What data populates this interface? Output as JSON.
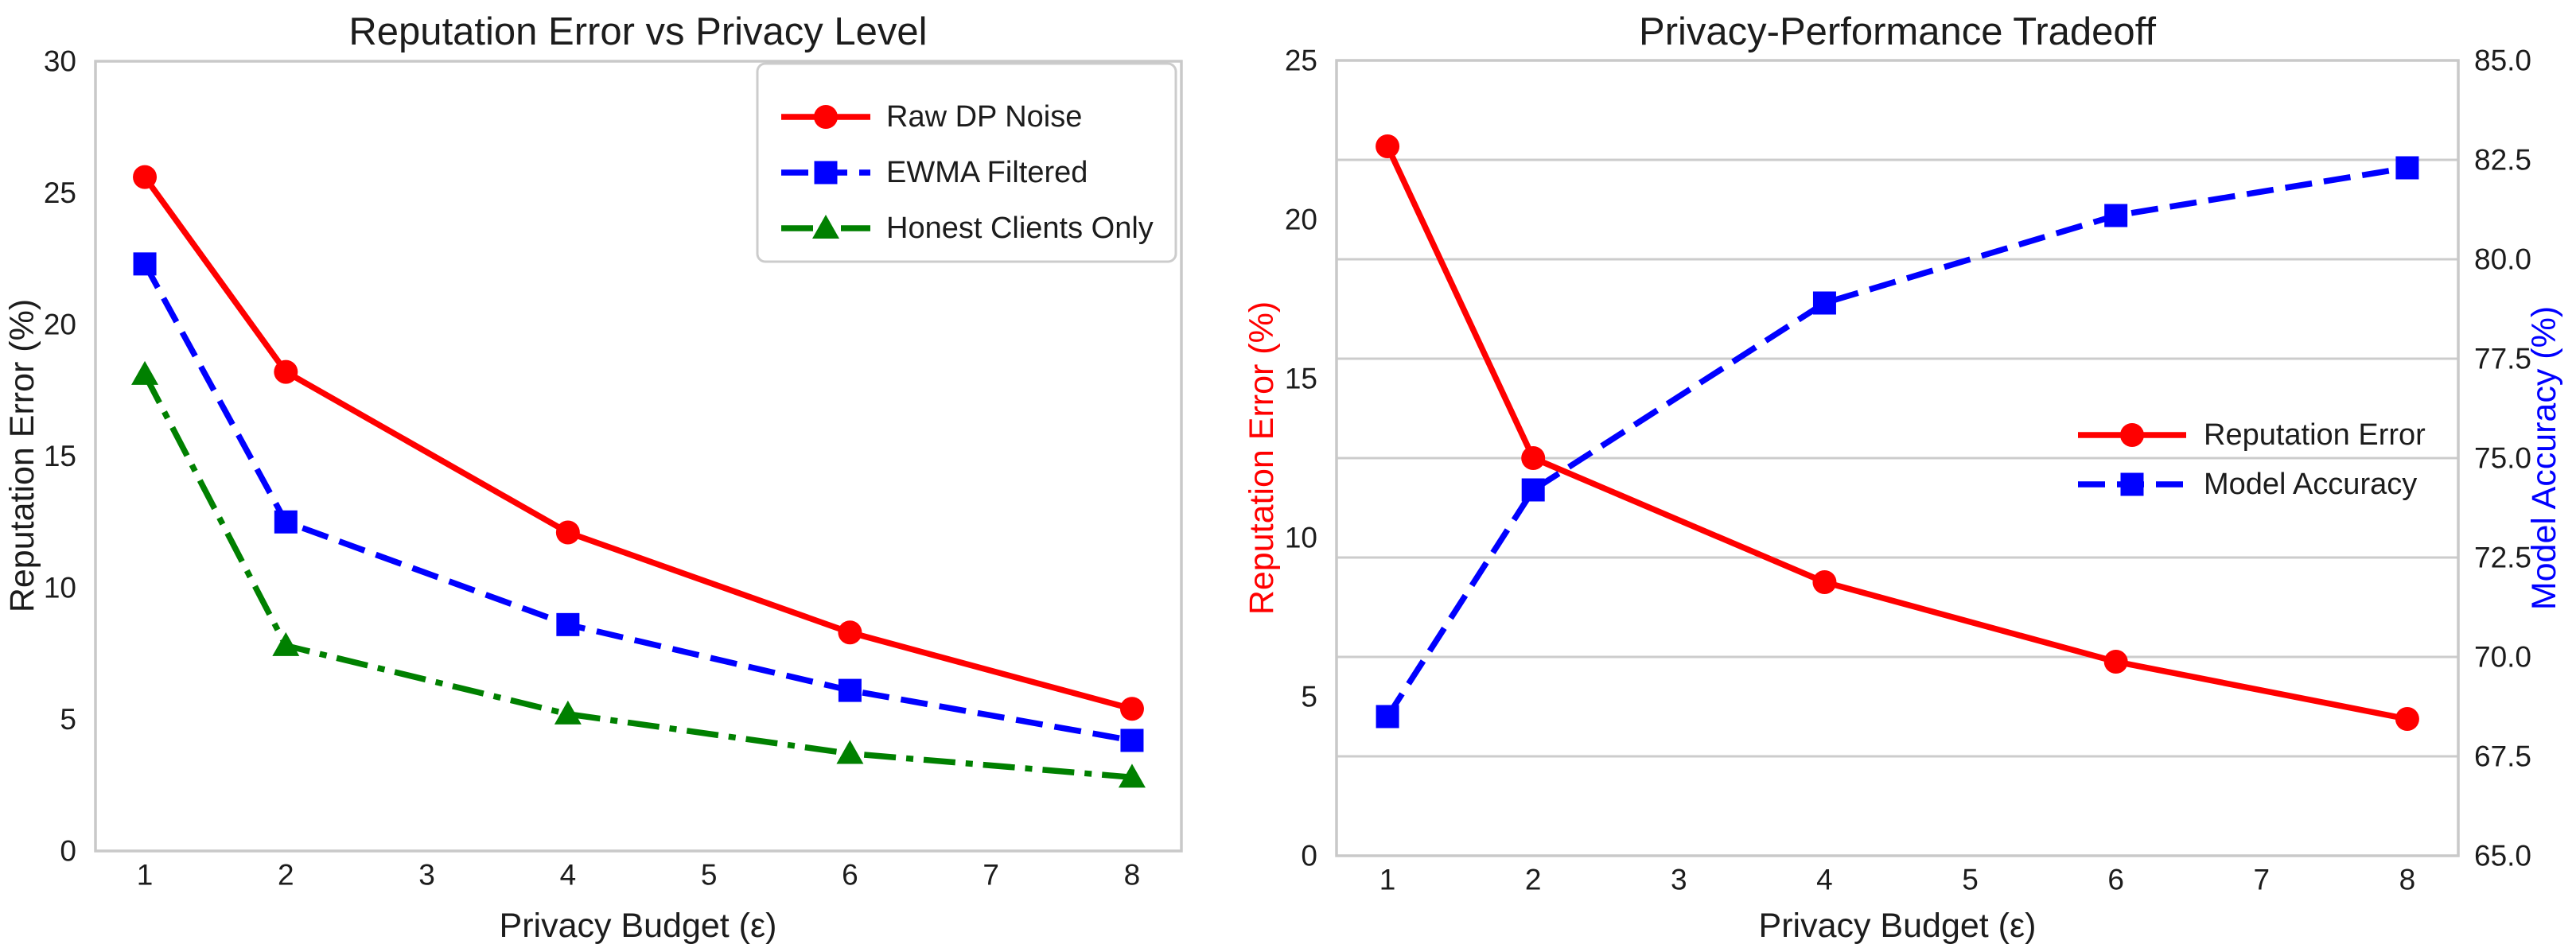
{
  "figure": {
    "background": "#ffffff",
    "text_color": "#1c1c1c",
    "axis_color": "#c9c9c9",
    "grid_color": "#cccccc"
  },
  "chart_data": [
    {
      "id": "reputation-error-vs-privacy-level",
      "type": "line",
      "title": "Reputation Error vs Privacy Level",
      "xlabel": "Privacy Budget (ε)",
      "ylabel": "Reputation Error (%)",
      "x": [
        1,
        2,
        4,
        6,
        8
      ],
      "xlim": [
        0.65,
        8.35
      ],
      "ylim": [
        0,
        30
      ],
      "xticks": {
        "values": [
          1,
          2,
          3,
          4,
          5,
          6,
          7,
          8
        ],
        "labels": [
          "1",
          "2",
          "3",
          "4",
          "5",
          "6",
          "7",
          "8"
        ]
      },
      "yticks": {
        "values": [
          0,
          5,
          10,
          15,
          20,
          25,
          30
        ],
        "labels": [
          "0",
          "5",
          "10",
          "15",
          "20",
          "25",
          "30"
        ]
      },
      "grid": "off",
      "legend": {
        "frame": true,
        "location": "upper-right"
      },
      "series": [
        {
          "name": "Raw DP Noise",
          "color": "#ff0000",
          "linestyle": "solid",
          "marker": "circle",
          "values": [
            25.6,
            18.2,
            12.1,
            8.3,
            5.4
          ]
        },
        {
          "name": "EWMA Filtered",
          "color": "#0000ff",
          "linestyle": "dashed",
          "marker": "square",
          "values": [
            22.3,
            12.5,
            8.6,
            6.1,
            4.2
          ]
        },
        {
          "name": "Honest Clients Only",
          "color": "#008000",
          "linestyle": "dashdot",
          "marker": "triangle",
          "values": [
            18.1,
            7.8,
            5.2,
            3.7,
            2.8
          ]
        }
      ]
    },
    {
      "id": "privacy-performance-tradeoff",
      "type": "line-dual-axis",
      "title": "Privacy-Performance Tradeoff",
      "xlabel": "Privacy Budget (ε)",
      "ylabel_left": "Reputation Error (%)",
      "ylabel_left_color": "#ff0000",
      "ylabel_right": "Model Accuracy (%)",
      "ylabel_right_color": "#0000ff",
      "x": [
        1,
        2,
        4,
        6,
        8
      ],
      "xlim": [
        0.65,
        8.35
      ],
      "ylim_left": [
        0,
        25
      ],
      "ylim_right": [
        65,
        85
      ],
      "xticks": {
        "values": [
          1,
          2,
          3,
          4,
          5,
          6,
          7,
          8
        ],
        "labels": [
          "1",
          "2",
          "3",
          "4",
          "5",
          "6",
          "7",
          "8"
        ]
      },
      "yticks_left": {
        "values": [
          0,
          5,
          10,
          15,
          20,
          25
        ],
        "labels": [
          "0",
          "5",
          "10",
          "15",
          "20",
          "25"
        ]
      },
      "yticks_right": {
        "values": [
          65,
          67.5,
          70,
          72.5,
          75,
          77.5,
          80,
          82.5,
          85
        ],
        "labels": [
          "65.0",
          "67.5",
          "70.0",
          "72.5",
          "75.0",
          "77.5",
          "80.0",
          "82.5",
          "85.0"
        ]
      },
      "grid": "right-axis-horizontal",
      "legend": {
        "frame": false,
        "location": "center-right"
      },
      "series": [
        {
          "name": "Reputation Error",
          "axis": "left",
          "color": "#ff0000",
          "linestyle": "solid",
          "marker": "circle",
          "values": [
            22.3,
            12.5,
            8.6,
            6.1,
            4.3
          ]
        },
        {
          "name": "Model Accuracy",
          "axis": "right",
          "color": "#0000ff",
          "linestyle": "dashed",
          "marker": "square",
          "values": [
            68.5,
            74.2,
            78.9,
            81.1,
            82.3
          ]
        }
      ]
    }
  ]
}
